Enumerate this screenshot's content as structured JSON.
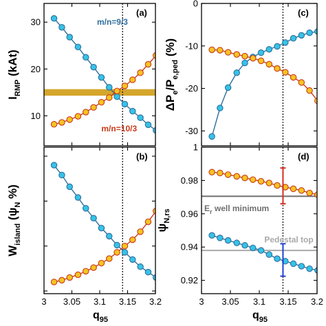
{
  "colors": {
    "blue_line": "#2f6e9e",
    "blue_fill": "#35c3e6",
    "red_line": "#c93a1a",
    "red_fill": "#f6c321",
    "gold_band": "#d4a62c",
    "pedestal_line": "#a9a9a9",
    "er_line": "#6f6f6f",
    "vline": "#000000",
    "error_red": "#d62a1e",
    "error_blue": "#1f3fd1"
  },
  "chart_data": [
    {
      "id": "a",
      "type": "line",
      "panel_label": "(a)",
      "ylabel_main": "I",
      "ylabel_sub": "RMP",
      "ylabel_tail": " (kAt)",
      "xlim": [
        3.0,
        3.2
      ],
      "ylim": [
        3.6,
        34.0
      ],
      "yticks": [
        10,
        20,
        30
      ],
      "xticks": [
        3.0,
        3.05,
        3.1,
        3.15,
        3.2
      ],
      "xtick_labels": [
        "3",
        "3.05",
        "3.1",
        "3.15",
        "3.2"
      ],
      "show_xtick_labels": false,
      "vline_x": 3.141,
      "band": {
        "y": 15.0,
        "half_width": 0.7
      },
      "x": [
        3.018,
        3.032,
        3.046,
        3.061,
        3.075,
        3.089,
        3.103,
        3.117,
        3.131,
        3.145,
        3.159,
        3.173,
        3.187,
        3.201
      ],
      "series": [
        {
          "name": "m/n=9/3",
          "color_key": "blue",
          "values": [
            30.8,
            28.9,
            26.8,
            24.7,
            22.5,
            20.4,
            18.2,
            16.1,
            14.1,
            12.5,
            11.0,
            9.6,
            8.1,
            6.9
          ]
        },
        {
          "name": "m/n=10/3",
          "color_key": "red",
          "values": [
            8.2,
            8.6,
            9.2,
            9.9,
            10.8,
            11.8,
            12.9,
            13.9,
            15.3,
            16.4,
            17.7,
            19.2,
            21.0,
            22.9
          ]
        }
      ],
      "annotations": [
        {
          "text": "m/n=9/3",
          "color_key": "blue",
          "x": 3.095,
          "y": 30.0
        },
        {
          "text": "m/n=10/3",
          "color_key": "red",
          "x": 3.103,
          "y": 7.3
        }
      ]
    },
    {
      "id": "b",
      "type": "line",
      "panel_label": "(b)",
      "ylabel_main": "W",
      "ylabel_sub": "island",
      "ylabel_tail": " (ψ",
      "ylabel_sub2": "N",
      "ylabel_tail2": " %)",
      "xlim": [
        3.0,
        3.2
      ],
      "ylim": [
        1.47,
        3.1
      ],
      "yticks": [
        1.5,
        2.0,
        2.5,
        3.0
      ],
      "yticks_labeled": [],
      "xticks": [
        3.0,
        3.05,
        3.1,
        3.15,
        3.2
      ],
      "xtick_labels": [
        "3",
        "3.05",
        "3.1",
        "3.15",
        "3.2"
      ],
      "show_xtick_labels": true,
      "xlabel": "q",
      "xlabel_sub": "95",
      "vline_x": 3.141,
      "x": [
        3.018,
        3.032,
        3.046,
        3.061,
        3.075,
        3.089,
        3.103,
        3.117,
        3.131,
        3.145,
        3.159,
        3.173,
        3.187,
        3.201
      ],
      "series": [
        {
          "name": "m/n=9/3",
          "color_key": "blue",
          "values": [
            2.9,
            2.79,
            2.66,
            2.54,
            2.42,
            2.31,
            2.2,
            2.11,
            2.01,
            1.93,
            1.85,
            1.77,
            1.71,
            1.65
          ]
        },
        {
          "name": "m/n=10/3",
          "color_key": "red",
          "values": [
            1.6,
            1.62,
            1.65,
            1.68,
            1.72,
            1.76,
            1.81,
            1.86,
            1.93,
            2.0,
            2.07,
            2.16,
            2.27,
            2.39
          ]
        }
      ]
    },
    {
      "id": "c",
      "type": "line",
      "panel_label": "(c)",
      "ylabel_main": "ΔP",
      "ylabel_sub": "e",
      "ylabel_tail": "/P",
      "ylabel_sub2": "e,ped",
      "ylabel_tail2": " (%)",
      "xlim": [
        3.0,
        3.2
      ],
      "ylim": [
        -33.5,
        0.0
      ],
      "yticks": [
        -30,
        -20,
        -10,
        0
      ],
      "xticks": [
        3.0,
        3.05,
        3.1,
        3.15,
        3.2
      ],
      "xtick_labels": [
        "3",
        "3.05",
        "3.1",
        "3.15",
        "3.2"
      ],
      "show_xtick_labels": false,
      "vline_x": 3.141,
      "x": [
        3.018,
        3.032,
        3.046,
        3.061,
        3.075,
        3.089,
        3.103,
        3.117,
        3.131,
        3.145,
        3.159,
        3.173,
        3.187,
        3.201
      ],
      "series": [
        {
          "name": "m/n=9/3",
          "color_key": "blue",
          "values": [
            -31.3,
            -24.6,
            -19.8,
            -16.3,
            -14.0,
            -12.6,
            -11.6,
            -10.8,
            -10.1,
            -9.2,
            -8.2,
            -7.5,
            -6.9,
            -6.6
          ]
        },
        {
          "name": "m/n=10/3",
          "color_key": "red",
          "values": [
            -10.9,
            -11.0,
            -11.5,
            -12.0,
            -12.4,
            -12.9,
            -13.5,
            -14.3,
            -15.3,
            -16.2,
            -17.4,
            -18.6,
            -20.5,
            -22.9
          ]
        }
      ]
    },
    {
      "id": "d",
      "type": "line",
      "panel_label": "(d)",
      "ylabel_main": "ψ",
      "ylabel_sub": "N,rs",
      "xlim": [
        3.0,
        3.2
      ],
      "ylim": [
        0.912,
        1.0
      ],
      "yticks": [
        0.92,
        0.94,
        0.96,
        0.98,
        1.0
      ],
      "ytick_labels": [
        "0.92",
        "0.94",
        "0.96",
        "0.98",
        "1"
      ],
      "xticks": [
        3.0,
        3.05,
        3.1,
        3.15,
        3.2
      ],
      "xtick_labels": [
        "3",
        "3.05",
        "3.1",
        "3.15",
        "3.2"
      ],
      "show_xtick_labels": true,
      "xlabel": "q",
      "xlabel_sub": "95",
      "vline_x": 3.141,
      "hlines": [
        {
          "y": 0.9705,
          "color_key": "er_line",
          "label": "E",
          "label_sub": "r",
          "label_tail": " well minimum",
          "label_x": 3.0,
          "label_y": 0.9632
        },
        {
          "y": 0.938,
          "color_key": "pedestal_line",
          "label": "Pedestal top",
          "label_x": 3.104,
          "label_y": 0.9445
        }
      ],
      "x": [
        3.018,
        3.032,
        3.046,
        3.061,
        3.075,
        3.089,
        3.103,
        3.117,
        3.131,
        3.145,
        3.159,
        3.173,
        3.187,
        3.201
      ],
      "series": [
        {
          "name": "m/n=9/3",
          "color_key": "blue",
          "values": [
            0.947,
            0.9455,
            0.944,
            0.9425,
            0.941,
            0.9395,
            0.938,
            0.9355,
            0.933,
            0.9315,
            0.93,
            0.9285,
            0.927,
            0.926
          ]
        },
        {
          "name": "m/n=10/3",
          "color_key": "red",
          "values": [
            0.985,
            0.9845,
            0.9835,
            0.9825,
            0.9815,
            0.9805,
            0.9795,
            0.9785,
            0.977,
            0.976,
            0.975,
            0.974,
            0.9725,
            0.9715
          ]
        }
      ],
      "errorbars": [
        {
          "x": 3.141,
          "y": 0.976,
          "low": 0.966,
          "high": 0.9875,
          "color_key": "error_red"
        },
        {
          "x": 3.141,
          "y": 0.932,
          "low": 0.9225,
          "high": 0.942,
          "color_key": "error_blue"
        }
      ]
    }
  ]
}
